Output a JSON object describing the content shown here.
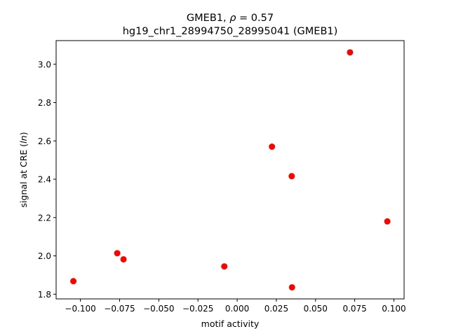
{
  "chart_data": {
    "type": "scatter",
    "title_line1": "GMEB1, ρ = 0.57",
    "title_line2": "hg19_chr1_28994750_28995041 (GMEB1)",
    "xlabel": "motif activity",
    "ylabel": "signal at CRE (ln)",
    "xlim": [
      -0.1155,
      0.1065
    ],
    "ylim": [
      1.7755,
      3.1235
    ],
    "xticks": [
      -0.1,
      -0.075,
      -0.05,
      -0.025,
      0.0,
      0.025,
      0.05,
      0.075,
      0.1
    ],
    "xtick_labels": [
      "−0.100",
      "−0.075",
      "−0.050",
      "−0.025",
      "0.000",
      "0.025",
      "0.050",
      "0.075",
      "0.100"
    ],
    "yticks": [
      1.8,
      2.0,
      2.2,
      2.4,
      2.6,
      2.8,
      3.0
    ],
    "ytick_labels": [
      "1.8",
      "2.0",
      "2.2",
      "2.4",
      "2.6",
      "2.8",
      "3.0"
    ],
    "grid": false,
    "marker_color": "#ff0000",
    "points": [
      {
        "x": -0.1045,
        "y": 1.868
      },
      {
        "x": -0.0765,
        "y": 2.014
      },
      {
        "x": -0.0725,
        "y": 1.982
      },
      {
        "x": -0.0082,
        "y": 1.945
      },
      {
        "x": 0.0222,
        "y": 2.57
      },
      {
        "x": 0.0348,
        "y": 2.416
      },
      {
        "x": 0.035,
        "y": 1.836
      },
      {
        "x": 0.072,
        "y": 3.062
      },
      {
        "x": 0.0958,
        "y": 2.18
      }
    ]
  }
}
